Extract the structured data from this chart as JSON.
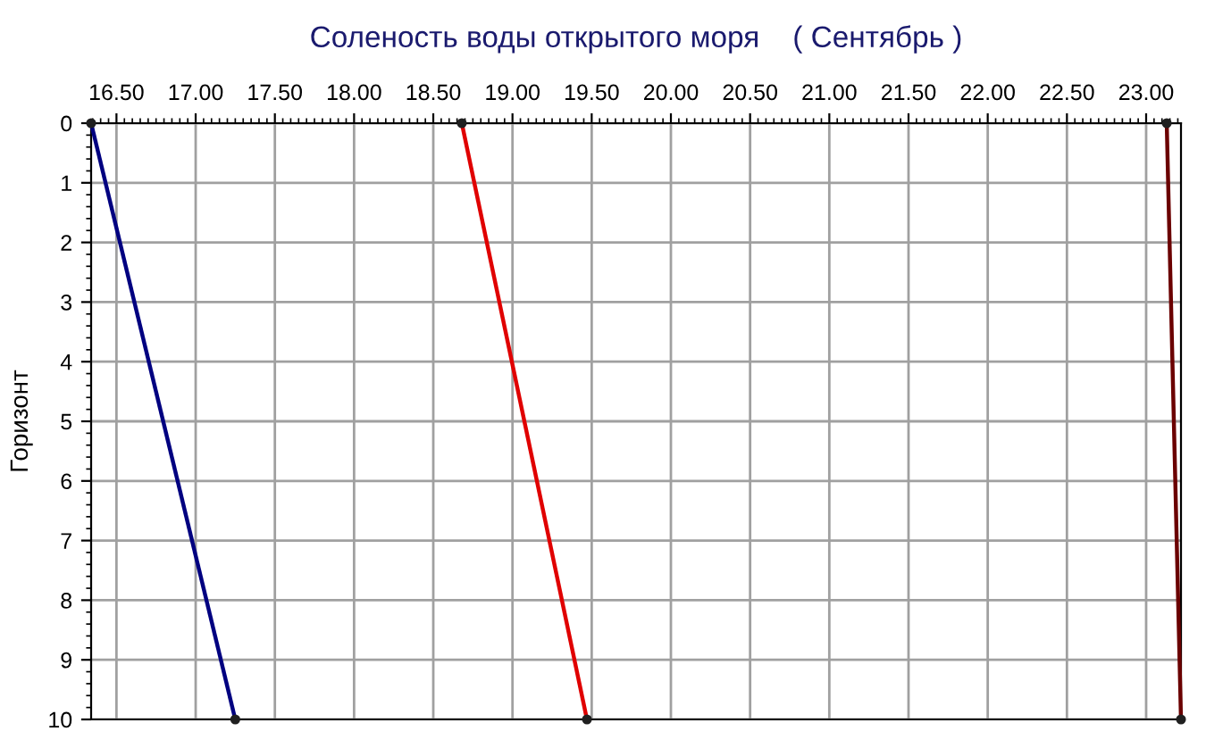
{
  "chart_data": {
    "type": "line",
    "title": "Соленость воды открытого моря    ( Сентябрь )",
    "ylabel": "Горизонт",
    "series": [
      {
        "color": "#000080",
        "x": [
          16.34,
          17.25
        ],
        "values": [
          0,
          10
        ]
      },
      {
        "color": "#e00000",
        "x": [
          18.68,
          19.47
        ],
        "values": [
          0,
          10
        ]
      },
      {
        "color": "#6b0000",
        "x": [
          23.13,
          23.22
        ],
        "values": [
          0,
          10
        ]
      }
    ],
    "xlim": [
      16.34,
      23.22
    ],
    "xticks": [
      {
        "value": 16.5,
        "label": "16.50"
      },
      {
        "value": 17.0,
        "label": "17.00"
      },
      {
        "value": 17.5,
        "label": "17.50"
      },
      {
        "value": 18.0,
        "label": "18.00"
      },
      {
        "value": 18.5,
        "label": "18.50"
      },
      {
        "value": 19.0,
        "label": "19.00"
      },
      {
        "value": 19.5,
        "label": "19.50"
      },
      {
        "value": 20.0,
        "label": "20.00"
      },
      {
        "value": 20.5,
        "label": "20.50"
      },
      {
        "value": 21.0,
        "label": "21.00"
      },
      {
        "value": 21.5,
        "label": "21.50"
      },
      {
        "value": 22.0,
        "label": "22.00"
      },
      {
        "value": 22.5,
        "label": "22.50"
      },
      {
        "value": 23.0,
        "label": "23.00"
      }
    ],
    "ylim": [
      10,
      0
    ],
    "yticks": [
      0,
      1,
      2,
      3,
      4,
      5,
      6,
      7,
      8,
      9,
      10
    ],
    "grid": true,
    "marker": "circle",
    "line_style": "solid",
    "legend": false
  }
}
